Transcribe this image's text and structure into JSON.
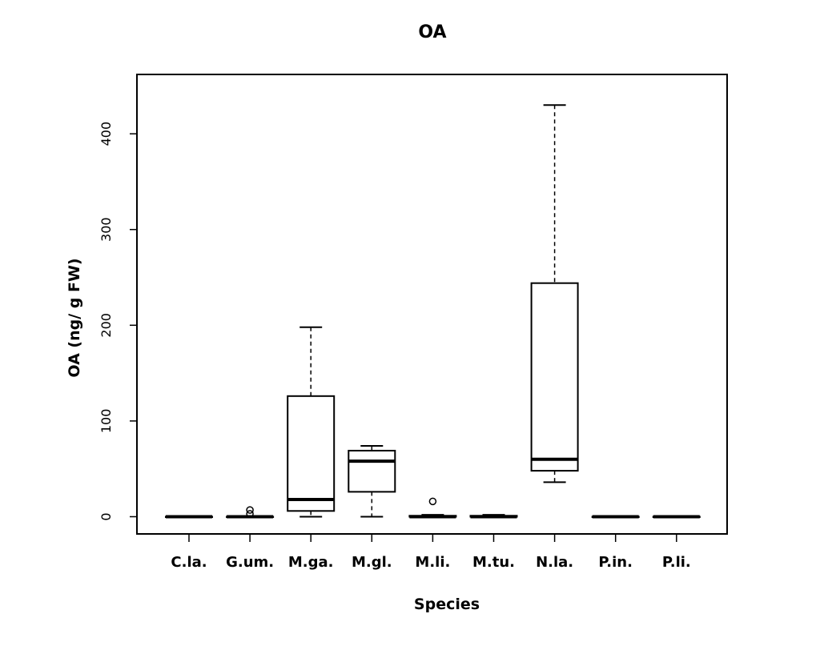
{
  "chart_data": {
    "type": "box",
    "title": "OA",
    "xlabel": "Species",
    "ylabel": "OA (ng/ g FW)",
    "ylim": [
      -18,
      462
    ],
    "yticks": [
      0,
      100,
      200,
      300,
      400
    ],
    "categories": [
      "C.la.",
      "G.um.",
      "M.ga.",
      "M.gl.",
      "M.li.",
      "M.tu.",
      "N.la.",
      "P.in.",
      "P.li."
    ],
    "boxes": [
      {
        "whisker_low": 0,
        "q1": 0,
        "median": 0,
        "q3": 0,
        "whisker_high": 0,
        "outliers": []
      },
      {
        "whisker_low": 0,
        "q1": 0,
        "median": 0,
        "q3": 0,
        "whisker_high": 0,
        "outliers": [
          3,
          7
        ]
      },
      {
        "whisker_low": 0,
        "q1": 6,
        "median": 18,
        "q3": 126,
        "whisker_high": 198,
        "outliers": []
      },
      {
        "whisker_low": 0,
        "q1": 26,
        "median": 58,
        "q3": 69,
        "whisker_high": 74,
        "outliers": []
      },
      {
        "whisker_low": 0,
        "q1": 0,
        "median": 0,
        "q3": 1,
        "whisker_high": 2,
        "outliers": [
          16
        ]
      },
      {
        "whisker_low": 0,
        "q1": 0,
        "median": 0,
        "q3": 1,
        "whisker_high": 2,
        "outliers": []
      },
      {
        "whisker_low": 36,
        "q1": 48,
        "median": 60,
        "q3": 244,
        "whisker_high": 430,
        "outliers": []
      },
      {
        "whisker_low": 0,
        "q1": 0,
        "median": 0,
        "q3": 0,
        "whisker_high": 0,
        "outliers": []
      },
      {
        "whisker_low": 0,
        "q1": 0,
        "median": 0,
        "q3": 0,
        "whisker_high": 0,
        "outliers": []
      }
    ],
    "grid": false,
    "legend": "none"
  }
}
